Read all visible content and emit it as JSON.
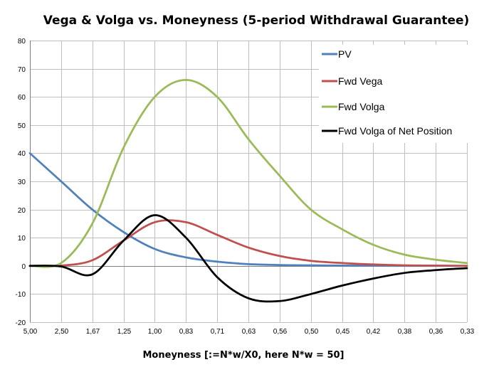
{
  "chart_data": {
    "type": "line",
    "title": "Vega & Volga vs. Moneyness (5-period Withdrawal Guarantee)",
    "xlabel": "Moneyness  [:=N*w/X0,  here N*w = 50]",
    "ylabel": "",
    "ylim": [
      -20,
      80
    ],
    "yticks": [
      -20,
      -10,
      0,
      10,
      20,
      30,
      40,
      50,
      60,
      70,
      80
    ],
    "categories": [
      "5,00",
      "2,50",
      "1,67",
      "1,25",
      "1,00",
      "0,83",
      "0,71",
      "0,63",
      "0,56",
      "0,50",
      "0,45",
      "0,42",
      "0,38",
      "0,36",
      "0,33"
    ],
    "grid": true,
    "legend_position": "top-right",
    "series": [
      {
        "name": "PV",
        "color": "#4f81bd",
        "values": [
          40,
          30,
          20,
          12,
          6,
          3,
          1.5,
          0.6,
          0.3,
          0.2,
          0.1,
          0.05,
          0.02,
          0.01,
          0
        ]
      },
      {
        "name": "Fwd Vega",
        "color": "#c0504d",
        "values": [
          0,
          0.1,
          2,
          9,
          15.5,
          15.5,
          11,
          6.5,
          3.5,
          1.8,
          1,
          0.5,
          0.2,
          0.1,
          0
        ]
      },
      {
        "name": "Fwd Volga",
        "color": "#9bbb59",
        "values": [
          0,
          1,
          15,
          42,
          60,
          66,
          60,
          45,
          32,
          20,
          13,
          7.5,
          4,
          2.2,
          1
        ]
      },
      {
        "name": "Fwd Volga of Net Position",
        "color": "#000000",
        "values": [
          0,
          -0.2,
          -3,
          9,
          18,
          10,
          -4,
          -11.5,
          -12.5,
          -10,
          -7,
          -4.5,
          -2.5,
          -1.5,
          -0.8
        ]
      }
    ]
  }
}
